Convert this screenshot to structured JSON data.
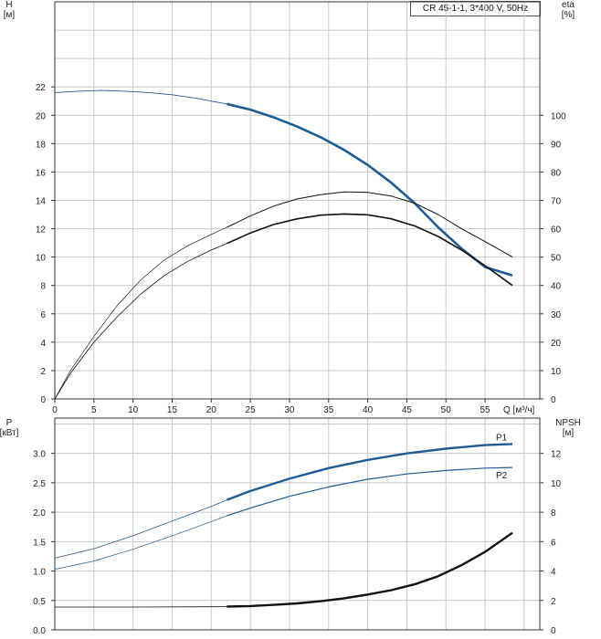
{
  "title": "CR 45-1-1, 3*400 V, 50Hz",
  "colors": {
    "head": "#1f5b94",
    "power": "#1f5b94",
    "efficiency": "#111111",
    "npsh": "#111111",
    "grid": "#c8c8c8",
    "axis": "#333333"
  },
  "chart_data": [
    {
      "type": "line",
      "panel": "top",
      "x_label": "Q [м³/ч]",
      "y_left_label": [
        "H",
        "[м]"
      ],
      "y_right_label": [
        "eta",
        "[%]"
      ],
      "x_ticks": [
        0,
        5,
        10,
        15,
        20,
        25,
        30,
        35,
        40,
        45,
        50,
        55
      ],
      "y_left_ticks": [
        0,
        2,
        4,
        6,
        8,
        10,
        12,
        14,
        16,
        18,
        20,
        22
      ],
      "y_right_ticks": [
        0,
        10,
        20,
        30,
        40,
        50,
        60,
        70,
        80,
        90,
        100
      ],
      "xlim": [
        0,
        62
      ],
      "ylim_left": [
        0,
        28
      ],
      "ylim_right": [
        0,
        140
      ],
      "operating_range": [
        22,
        58.5
      ],
      "series": [
        {
          "key": "head",
          "axis": "left",
          "width_in": 2.6,
          "width_out": 0.9,
          "x": [
            0,
            3,
            6,
            9,
            12,
            15,
            18,
            22,
            25,
            28,
            31,
            34,
            37,
            40,
            43,
            46,
            49,
            52,
            55,
            58.5
          ],
          "y": [
            21.6,
            21.7,
            21.75,
            21.7,
            21.6,
            21.45,
            21.2,
            20.8,
            20.4,
            19.85,
            19.2,
            18.45,
            17.55,
            16.5,
            15.25,
            13.8,
            12.1,
            10.6,
            9.3,
            8.7
          ]
        },
        {
          "key": "efficiency",
          "axis": "right",
          "width_in": 1.6,
          "width_out": 0.8,
          "x": [
            0,
            2,
            5,
            8,
            11,
            14,
            17,
            20,
            22,
            25,
            28,
            31,
            34,
            37,
            40,
            43,
            46,
            49,
            52,
            55,
            58.5
          ],
          "y": [
            0,
            9,
            20,
            29,
            37,
            43.5,
            48.5,
            52.5,
            54.8,
            58.5,
            61.5,
            63.5,
            64.8,
            65.2,
            64.9,
            63.5,
            61.0,
            57.3,
            52.5,
            47.0,
            40.0
          ]
        },
        {
          "key": "efficiency",
          "axis": "right",
          "width_in": 1.0,
          "width_out": 0.6,
          "x": [
            0,
            2,
            5,
            8,
            11,
            14,
            17,
            20,
            22,
            25,
            28,
            31,
            34,
            37,
            40,
            43,
            46,
            49,
            52,
            55,
            58.5
          ],
          "y": [
            0,
            10,
            22,
            33,
            42,
            49,
            54,
            58,
            60.5,
            64.5,
            68,
            70.5,
            72,
            73,
            72.8,
            71.5,
            69.0,
            65.0,
            60.0,
            55.5,
            50.0
          ]
        }
      ]
    },
    {
      "type": "line",
      "panel": "bottom",
      "y_left_label": [
        "P",
        "[кВт]"
      ],
      "y_right_label": [
        "NPSH",
        "[м]"
      ],
      "y_left_ticks": [
        "0.0",
        "0.5",
        "1.0",
        "1.5",
        "2.0",
        "2.5",
        "3.0"
      ],
      "y_right_ticks": [
        0,
        2,
        4,
        6,
        8,
        10,
        12
      ],
      "xlim": [
        0,
        62
      ],
      "ylim_left": [
        0,
        3.6
      ],
      "ylim_right": [
        0,
        14.4
      ],
      "operating_range": [
        22,
        58.5
      ],
      "series": [
        {
          "key": "power",
          "name": "P1",
          "axis": "left",
          "width_in": 2.4,
          "width_out": 0.8,
          "x": [
            0,
            5,
            10,
            15,
            20,
            22,
            25,
            30,
            35,
            40,
            45,
            50,
            55,
            58.5
          ],
          "y": [
            1.22,
            1.38,
            1.6,
            1.85,
            2.1,
            2.21,
            2.36,
            2.57,
            2.75,
            2.89,
            3.0,
            3.08,
            3.14,
            3.16
          ]
        },
        {
          "key": "power",
          "name": "P2",
          "axis": "left",
          "width_in": 1.2,
          "width_out": 0.7,
          "x": [
            0,
            5,
            10,
            15,
            20,
            22,
            25,
            30,
            35,
            40,
            45,
            50,
            55,
            58.5
          ],
          "y": [
            1.03,
            1.17,
            1.37,
            1.6,
            1.84,
            1.94,
            2.07,
            2.27,
            2.43,
            2.56,
            2.65,
            2.71,
            2.75,
            2.76
          ]
        },
        {
          "key": "npsh",
          "axis": "right",
          "width_in": 2.4,
          "width_out": 0.8,
          "x": [
            0,
            10,
            20,
            22,
            25,
            28,
            31,
            34,
            37,
            40,
            43,
            46,
            49,
            52,
            55,
            58.5
          ],
          "y": [
            1.55,
            1.55,
            1.57,
            1.58,
            1.62,
            1.7,
            1.8,
            1.95,
            2.15,
            2.4,
            2.7,
            3.1,
            3.65,
            4.4,
            5.3,
            6.6
          ]
        }
      ]
    }
  ]
}
